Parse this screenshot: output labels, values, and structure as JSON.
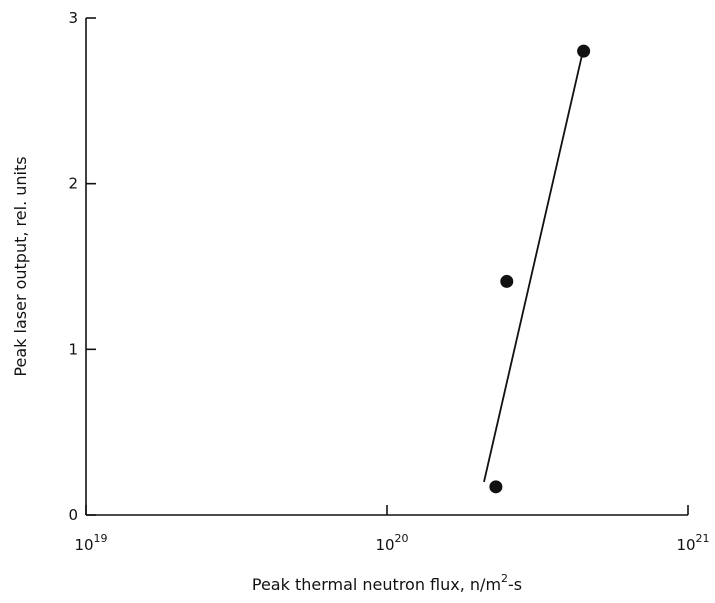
{
  "chart_data": {
    "type": "scatter",
    "x_scale": "log",
    "y_scale": "linear",
    "xlim": [
      1e+19,
      1e+21
    ],
    "ylim": [
      0,
      3
    ],
    "xlabel": {
      "text": "Peak thermal neutron flux,  n/m",
      "superscript": "2",
      "suffix": "-s"
    },
    "ylabel": "Peak laser output,  rel.  units",
    "x_ticks": [
      {
        "value": 1e+19,
        "base": "10",
        "exponent": "19"
      },
      {
        "value": 1e+20,
        "base": "10",
        "exponent": "20"
      },
      {
        "value": 1e+21,
        "base": "10",
        "exponent": "21"
      }
    ],
    "y_ticks": [
      {
        "value": 0,
        "label": "0"
      },
      {
        "value": 1,
        "label": "1"
      },
      {
        "value": 2,
        "label": "2"
      },
      {
        "value": 3,
        "label": "3"
      }
    ],
    "points": [
      {
        "x": 2.3e+20,
        "y": 0.17
      },
      {
        "x": 2.5e+20,
        "y": 1.41
      },
      {
        "x": 4.5e+20,
        "y": 2.8
      }
    ],
    "fit_line": [
      {
        "x": 2.1e+20,
        "y": 0.2
      },
      {
        "x": 4.45e+20,
        "y": 2.78
      }
    ],
    "grid": false,
    "colors": {
      "ink": "#111111",
      "background": "#ffffff"
    }
  }
}
